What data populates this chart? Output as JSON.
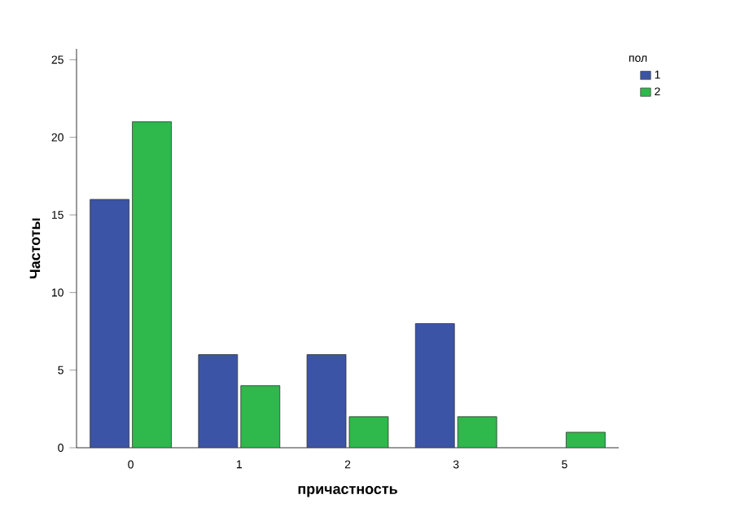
{
  "chart_data": {
    "type": "bar",
    "xlabel": "причастность",
    "ylabel": "Частоты",
    "legend_title": "пол",
    "categories": [
      "0",
      "1",
      "2",
      "3",
      "5"
    ],
    "series": [
      {
        "name": "1",
        "color": "#3b54a5",
        "values": [
          16,
          6,
          6,
          8,
          null
        ]
      },
      {
        "name": "2",
        "color": "#2fb84b",
        "values": [
          21,
          4,
          2,
          2,
          1
        ]
      }
    ],
    "ylim": [
      0,
      25.7
    ],
    "yticks": [
      0,
      5,
      10,
      15,
      20,
      25
    ],
    "grid": false,
    "legend": "top right"
  }
}
